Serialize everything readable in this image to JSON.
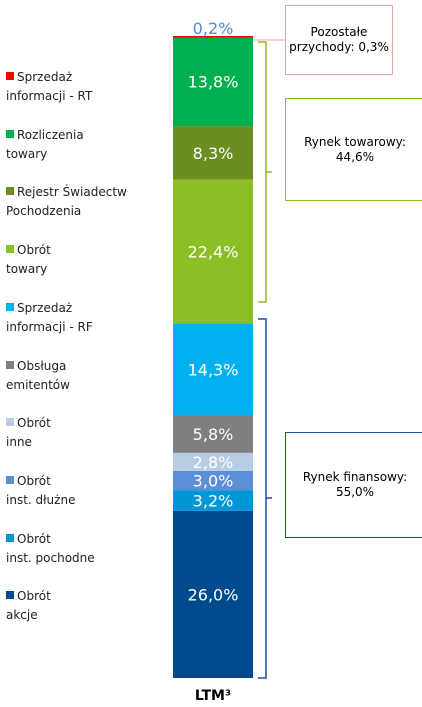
{
  "chart_data": {
    "type": "stacked_bar",
    "categories": [
      "LTM³"
    ],
    "series": [
      {
        "name": "Obrót\nakcje",
        "color": "#004b8d",
        "values": [
          26.0
        ],
        "value_labels": [
          "26,0%"
        ]
      },
      {
        "name": "Obrót\ninst. pochodne",
        "color": "#0096d6",
        "values": [
          3.2
        ],
        "value_labels": [
          "3,2%"
        ]
      },
      {
        "name": "Obrót\ninst. dłużne",
        "color": "#5b8fd6",
        "values": [
          3.0
        ],
        "value_labels": [
          "3,0%"
        ]
      },
      {
        "name": "Obrót\ninne",
        "color": "#b8cce4",
        "values": [
          2.8
        ],
        "value_labels": [
          "2,8%"
        ]
      },
      {
        "name": "Obsługa\nemitentów",
        "color": "#7f7f7f",
        "values": [
          5.8
        ],
        "value_labels": [
          "5,8%"
        ]
      },
      {
        "name": "Sprzedaż\ninformacji - RF",
        "color": "#00b0f0",
        "values": [
          14.3
        ],
        "value_labels": [
          "14,3%"
        ]
      },
      {
        "name": "Obrót\ntowary",
        "color": "#8cbf26",
        "values": [
          22.4
        ],
        "value_labels": [
          "22,4%"
        ]
      },
      {
        "name": "Rejestr Świadectw\nPochodzenia",
        "color": "#6b8e23",
        "values": [
          8.3
        ],
        "value_labels": [
          "8,3%"
        ]
      },
      {
        "name": "Rozliczenia\ntowary",
        "color": "#00b050",
        "values": [
          13.8
        ],
        "value_labels": [
          "13,8%"
        ]
      },
      {
        "name": "Sprzedaż\ninformacji - RT",
        "color": "#ff0000",
        "values": [
          0.2
        ],
        "value_labels": [
          "0,2%"
        ]
      }
    ],
    "annotations": [
      "Pozostałe\nprzychody: 0,3%",
      "Rynek towarowy:\n44,6%",
      "Rynek finansowy:\n55,0%"
    ]
  }
}
